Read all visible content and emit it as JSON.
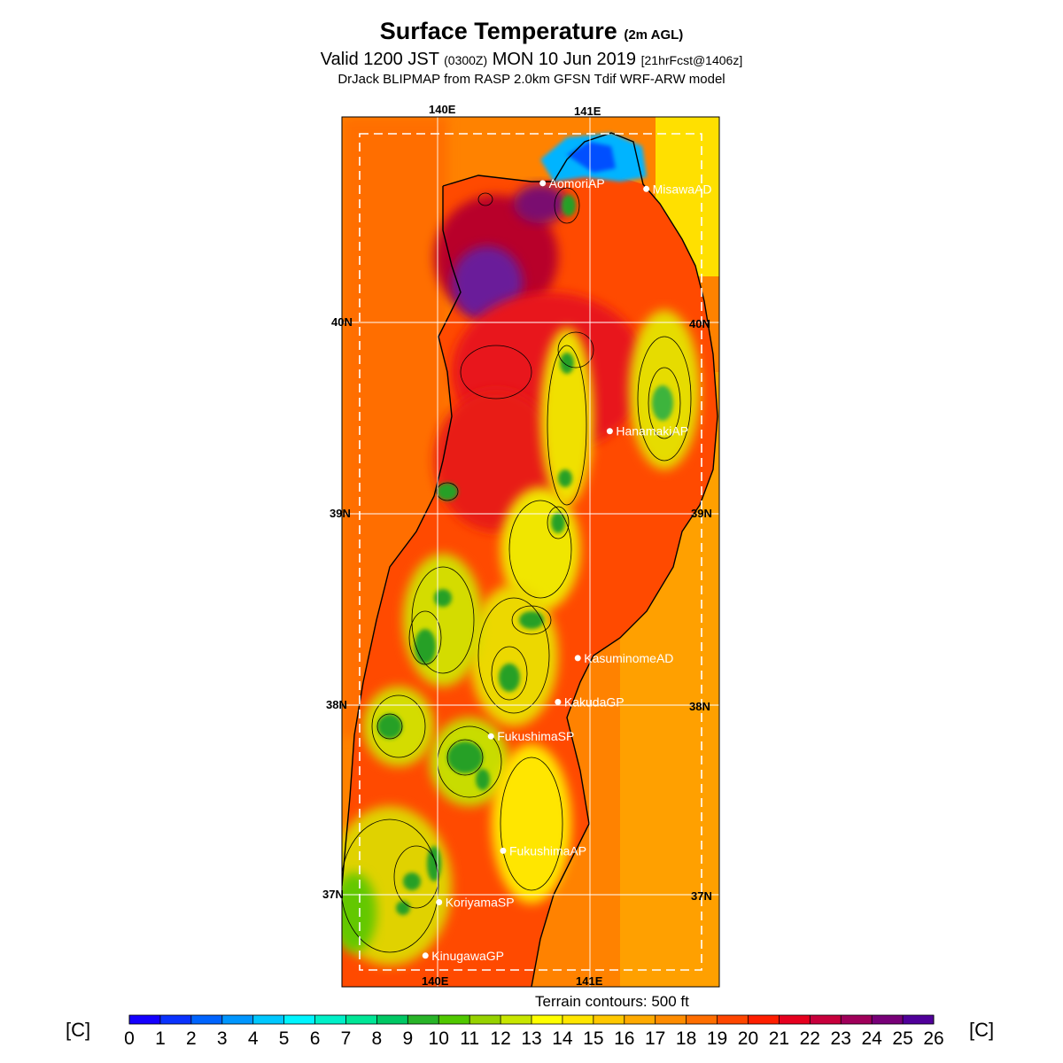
{
  "header": {
    "title": "Surface Temperature",
    "title_suffix": "(2m AGL)",
    "valid_main": "Valid 1200 JST",
    "valid_utc": "(0300Z)",
    "valid_date": "MON 10 Jun 2019",
    "forecast": "[21hrFcst@1406z]",
    "model": "DrJack BLIPMAP from RASP 2.0km GFSN Tdif WRF-ARW model"
  },
  "map": {
    "lon_labels": [
      "140E",
      "141E"
    ],
    "lat_labels": [
      "40N",
      "39N",
      "38N",
      "37N"
    ],
    "stations": [
      {
        "name": "AomoriAP",
        "lon": 140.69,
        "lat": 40.73
      },
      {
        "name": "MisawaAD",
        "lon": 141.37,
        "lat": 40.7
      },
      {
        "name": "HanamakiAP",
        "lon": 141.13,
        "lat": 39.43
      },
      {
        "name": "KasuminomeAD",
        "lon": 140.92,
        "lat": 38.24
      },
      {
        "name": "KakudaGP",
        "lon": 140.79,
        "lat": 38.01
      },
      {
        "name": "FukushimaSP",
        "lon": 140.35,
        "lat": 37.83
      },
      {
        "name": "FukushimaAP",
        "lon": 140.43,
        "lat": 37.23
      },
      {
        "name": "KoriyamaSP",
        "lon": 140.01,
        "lat": 36.96
      },
      {
        "name": "KinugawaGP",
        "lon": 139.92,
        "lat": 36.68
      }
    ]
  },
  "legend": {
    "unit_left": "[C]",
    "unit_right": "[C]",
    "terrain_note": "Terrain contours: 500 ft",
    "ticks": [
      "0",
      "1",
      "2",
      "3",
      "4",
      "5",
      "6",
      "7",
      "8",
      "9",
      "10",
      "11",
      "12",
      "13",
      "14",
      "15",
      "16",
      "17",
      "18",
      "19",
      "20",
      "21",
      "22",
      "23",
      "24",
      "25",
      "26"
    ],
    "colors": [
      "#1400ff",
      "#0a32ff",
      "#0064ff",
      "#0096ff",
      "#00c8ff",
      "#00f5ff",
      "#00f0c8",
      "#00e696",
      "#00c864",
      "#28b428",
      "#50c800",
      "#96d200",
      "#c8e600",
      "#ffff00",
      "#ffe600",
      "#ffc800",
      "#ffaa00",
      "#ff8c00",
      "#ff6e00",
      "#ff4600",
      "#ff1e00",
      "#e6001e",
      "#c8003c",
      "#a0005a",
      "#780078",
      "#50009a"
    ]
  },
  "colors": {
    "ocean": "#ff8c00",
    "coast": "#000000",
    "grid": "#ffffff"
  }
}
